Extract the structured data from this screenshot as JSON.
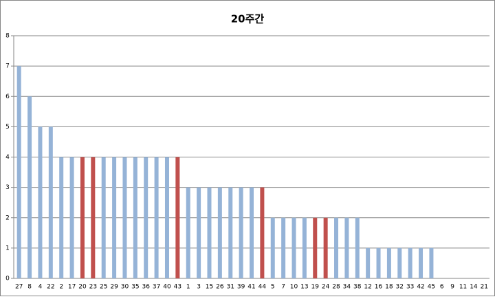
{
  "chart_data": {
    "type": "bar",
    "title": "20주간",
    "categories": [
      "27",
      "8",
      "4",
      "22",
      "2",
      "17",
      "20",
      "23",
      "25",
      "29",
      "30",
      "35",
      "36",
      "37",
      "40",
      "43",
      "1",
      "3",
      "15",
      "26",
      "31",
      "39",
      "41",
      "44",
      "5",
      "7",
      "10",
      "13",
      "19",
      "24",
      "28",
      "34",
      "38",
      "12",
      "16",
      "18",
      "32",
      "33",
      "42",
      "45",
      "6",
      "9",
      "11",
      "14",
      "21"
    ],
    "values": [
      7,
      6,
      5,
      5,
      4,
      4,
      4,
      4,
      4,
      4,
      4,
      4,
      4,
      4,
      4,
      4,
      3,
      3,
      3,
      3,
      3,
      3,
      3,
      3,
      2,
      2,
      2,
      2,
      2,
      2,
      2,
      2,
      2,
      1,
      1,
      1,
      1,
      1,
      1,
      1,
      0,
      0,
      0,
      0,
      0
    ],
    "colors": [
      "#95b3d7",
      "#95b3d7",
      "#95b3d7",
      "#95b3d7",
      "#95b3d7",
      "#95b3d7",
      "#c0504d",
      "#c0504d",
      "#95b3d7",
      "#95b3d7",
      "#95b3d7",
      "#95b3d7",
      "#95b3d7",
      "#95b3d7",
      "#95b3d7",
      "#c0504d",
      "#95b3d7",
      "#95b3d7",
      "#95b3d7",
      "#95b3d7",
      "#95b3d7",
      "#95b3d7",
      "#95b3d7",
      "#c0504d",
      "#95b3d7",
      "#95b3d7",
      "#95b3d7",
      "#95b3d7",
      "#c0504d",
      "#c0504d",
      "#95b3d7",
      "#95b3d7",
      "#95b3d7",
      "#95b3d7",
      "#95b3d7",
      "#95b3d7",
      "#95b3d7",
      "#95b3d7",
      "#95b3d7",
      "#95b3d7",
      "#95b3d7",
      "#95b3d7",
      "#95b3d7",
      "#95b3d7",
      "#95b3d7"
    ],
    "ylim": [
      0,
      8
    ],
    "yticks": [
      0,
      1,
      2,
      3,
      4,
      5,
      6,
      7,
      8
    ],
    "grid": true
  }
}
